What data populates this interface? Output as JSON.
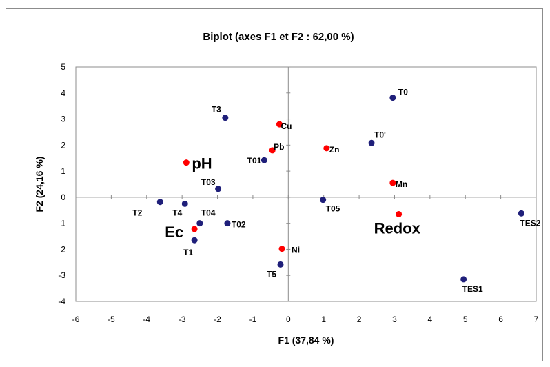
{
  "chart_data": {
    "type": "scatter",
    "title": "Biplot (axes F1 et F2 : 62,00 %)",
    "xlabel": "F1 (37,84 %)",
    "ylabel": "F2 (24,16 %)",
    "xlim": [
      -6,
      7
    ],
    "ylim": [
      -4,
      5
    ],
    "x_ticks": [
      "-6",
      "-5",
      "-4",
      "-3",
      "-2",
      "-1",
      "0",
      "1",
      "2",
      "3",
      "4",
      "5",
      "6",
      "7"
    ],
    "y_ticks": [
      "-4",
      "-3",
      "-2",
      "-1",
      "0",
      "1",
      "2",
      "3",
      "4",
      "5"
    ],
    "grid": false,
    "series": [
      {
        "color": "#1f1f7a",
        "points": [
          {
            "label": "T0",
            "x": 2.95,
            "y": 3.82
          },
          {
            "label": "T0'",
            "x": 2.35,
            "y": 2.08
          },
          {
            "label": "T3",
            "x": -1.78,
            "y": 3.05
          },
          {
            "label": "T01",
            "x": -0.68,
            "y": 1.42
          },
          {
            "label": "T03",
            "x": -1.98,
            "y": 0.32
          },
          {
            "label": "T2",
            "x": -3.62,
            "y": -0.18
          },
          {
            "label": "T4",
            "x": -2.92,
            "y": -0.25
          },
          {
            "label": "T04",
            "x": -2.5,
            "y": -1.0
          },
          {
            "label": "T02",
            "x": -1.72,
            "y": -1.0
          },
          {
            "label": "T1",
            "x": -2.65,
            "y": -1.65
          },
          {
            "label": "T05",
            "x": 0.98,
            "y": -0.1
          },
          {
            "label": "T5",
            "x": -0.22,
            "y": -2.58
          },
          {
            "label": "TES1",
            "x": 4.95,
            "y": -3.15
          },
          {
            "label": "TES2",
            "x": 6.58,
            "y": -0.62
          }
        ]
      },
      {
        "color": "#ff0000",
        "points": [
          {
            "label": "Cu",
            "x": -0.25,
            "y": 2.8
          },
          {
            "label": "Pb",
            "x": -0.45,
            "y": 1.8
          },
          {
            "label": "Zn",
            "x": 1.08,
            "y": 1.88
          },
          {
            "label": "pH",
            "x": -2.88,
            "y": 1.33
          },
          {
            "label": "Mn",
            "x": 2.95,
            "y": 0.55
          },
          {
            "label": "Ec",
            "x": -2.65,
            "y": -1.22
          },
          {
            "label": "Redox",
            "x": 3.12,
            "y": -0.65
          },
          {
            "label": "Ni",
            "x": -0.18,
            "y": -1.98
          }
        ]
      }
    ]
  }
}
